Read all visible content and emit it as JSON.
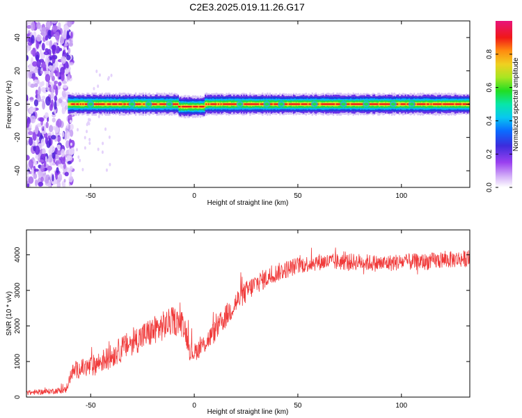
{
  "title": "C2E3.2025.019.11.26.G17",
  "colors": {
    "snr_line": "#f03a3a",
    "frame": "#000000",
    "colormap": [
      "#ffffff",
      "#c9a6f5",
      "#7a25e6",
      "#2a2ad8",
      "#0aa8ff",
      "#06e6c2",
      "#22dd22",
      "#d8e62a",
      "#ff9a12",
      "#f01818",
      "#e8147a"
    ]
  },
  "chart_data": [
    {
      "type": "heatmap",
      "title": "C2E3.2025.019.11.26.G17",
      "xlabel": "Height of straight line (km)",
      "ylabel": "Frequency (Hz)",
      "xlim": [
        -81,
        133
      ],
      "ylim": [
        -50,
        50
      ],
      "xticks": [
        "-50",
        "0",
        "50",
        "100"
      ],
      "xtick_values": [
        -50,
        0,
        50,
        100
      ],
      "yticks": [
        "40",
        "20",
        "0",
        "-20",
        "-40"
      ],
      "ytick_values": [
        40,
        20,
        0,
        -20,
        -40
      ],
      "colorbar": {
        "label": "Normalized spectral amplitude",
        "range": [
          0,
          1
        ],
        "ticks": [
          "0.0",
          "0.2",
          "0.4",
          "0.6",
          "0.8"
        ],
        "tick_values": [
          0.0,
          0.2,
          0.4,
          0.6,
          0.8
        ]
      },
      "features": {
        "noise_region_x": [
          -81,
          -60
        ],
        "band_start_x": -61,
        "band_center_frequency_hz": 0,
        "band_halfwidth_hz": 2,
        "band_dip": {
          "x": [
            -8,
            5
          ],
          "center_frequency_hz": -1.5
        }
      }
    },
    {
      "type": "line",
      "xlabel": "Height of straight line (km)",
      "ylabel": "SNR (10 * v/v)",
      "xlim": [
        -81,
        133
      ],
      "ylim": [
        0,
        4700
      ],
      "xticks": [
        "-50",
        "0",
        "50",
        "100"
      ],
      "xtick_values": [
        -50,
        0,
        50,
        100
      ],
      "yticks": [
        "0",
        "1000",
        "2000",
        "3000",
        "4000"
      ],
      "ytick_values": [
        0,
        1000,
        2000,
        3000,
        4000
      ],
      "series": [
        {
          "x": [
            -81,
            -70,
            -62,
            -59,
            -55,
            -50,
            -45,
            -40,
            -35,
            -30,
            -25,
            -20,
            -15,
            -10,
            -5,
            -2,
            0,
            5,
            10,
            15,
            20,
            25,
            30,
            35,
            40,
            45,
            50,
            55,
            60,
            65,
            70,
            75,
            80,
            90,
            100,
            110,
            120,
            133
          ],
          "values": [
            120,
            160,
            200,
            700,
            800,
            850,
            1000,
            1150,
            1350,
            1550,
            1700,
            1850,
            2000,
            2150,
            2050,
            1300,
            1250,
            1500,
            1850,
            2250,
            2650,
            2950,
            3200,
            3350,
            3500,
            3600,
            3700,
            3750,
            3800,
            3800,
            3800,
            3800,
            3800,
            3750,
            3800,
            3800,
            3850,
            3900
          ],
          "noise_amplitude": [
            70,
            80,
            90,
            220,
            260,
            300,
            320,
            340,
            360,
            380,
            400,
            420,
            420,
            400,
            380,
            300,
            260,
            280,
            320,
            340,
            340,
            320,
            300,
            280,
            260,
            260,
            240,
            240,
            240,
            240,
            240,
            240,
            240,
            240,
            240,
            240,
            240,
            240
          ]
        }
      ]
    }
  ]
}
